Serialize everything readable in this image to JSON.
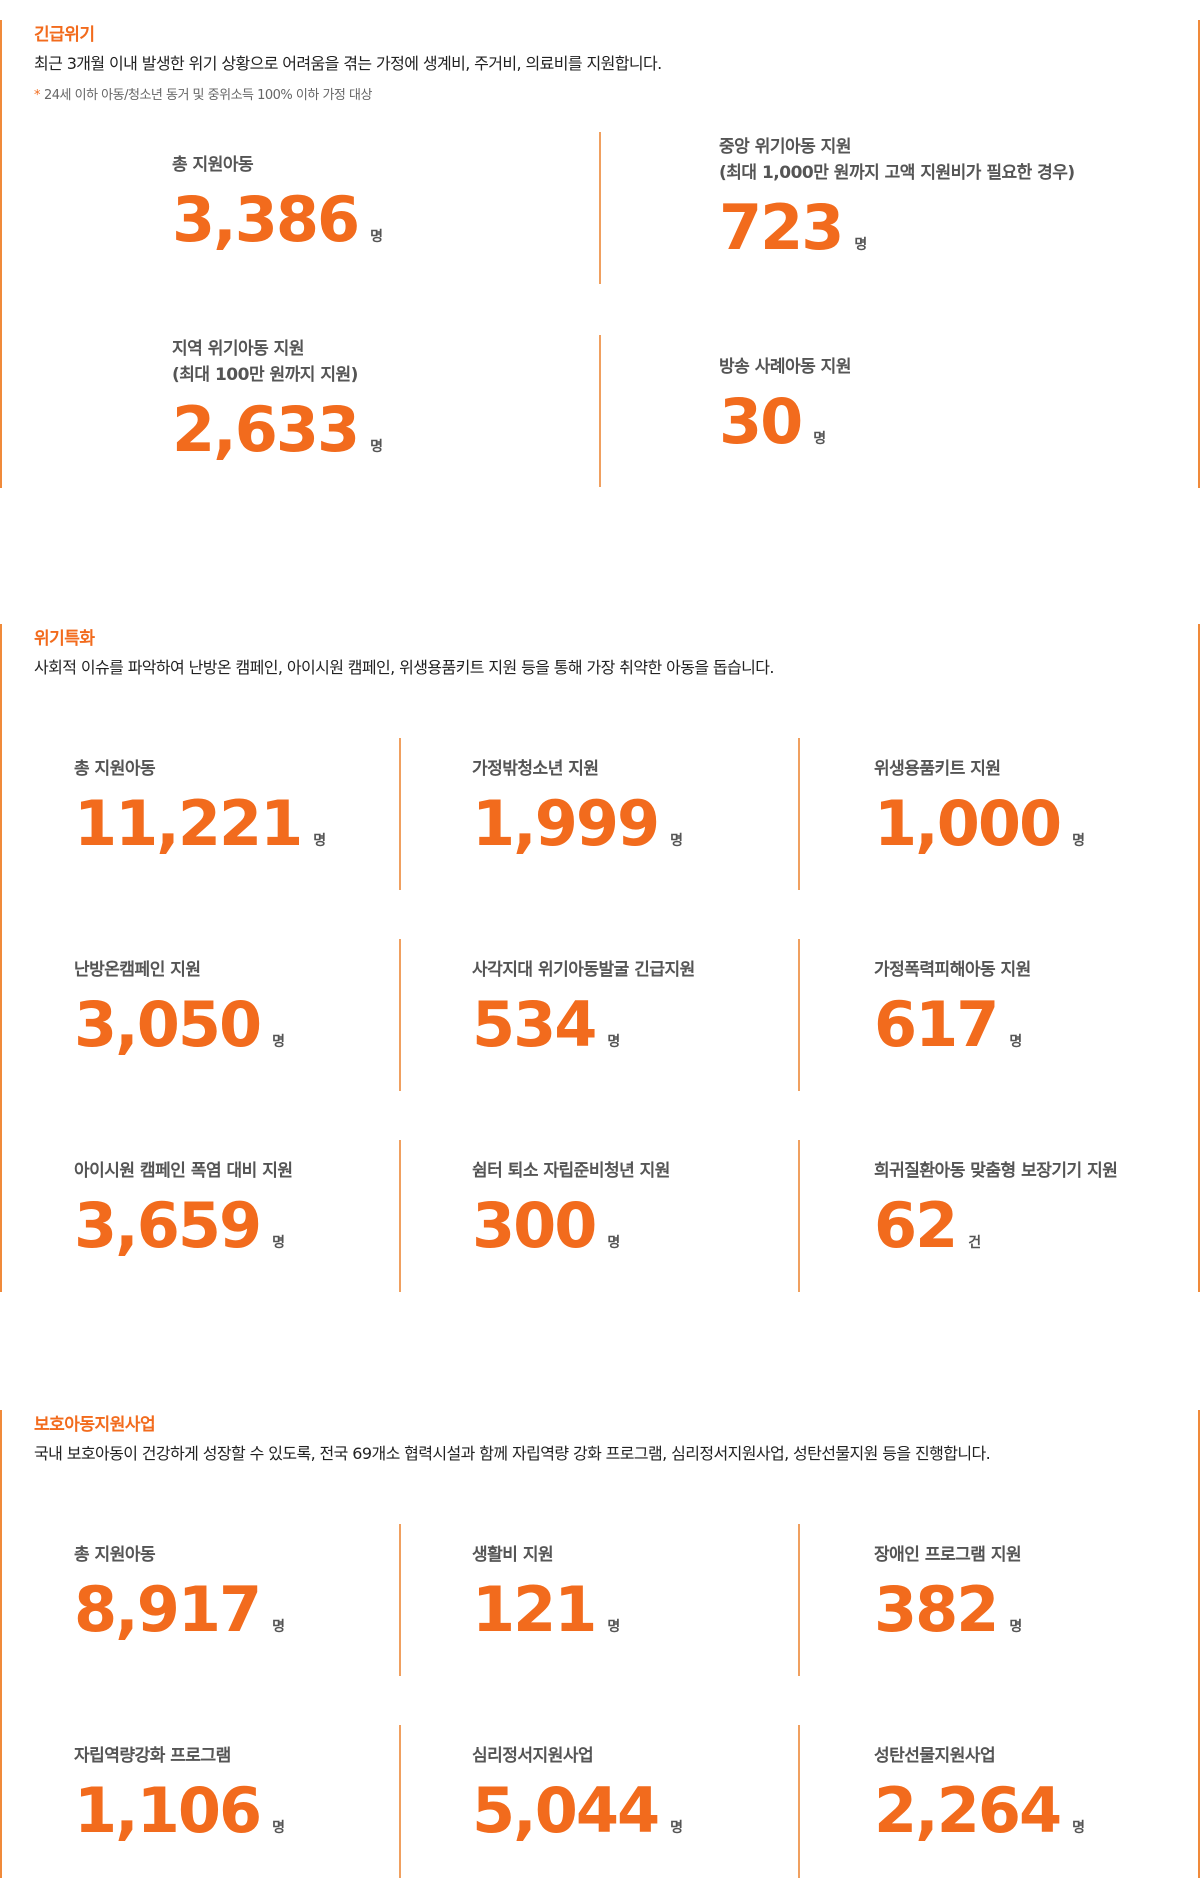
{
  "sections": [
    {
      "title": "긴급위기",
      "description": "최근 3개월 이내 발생한 위기 상황으로 어려움을 겪는 가정에 생계비, 주거비, 의료비를 지원합니다.",
      "note": "24세 이하 아동/청소년 동거 및 중위소득 100% 이하 가정 대상",
      "note_mark": "*",
      "stats": [
        {
          "label": "총 지원아동",
          "value": "3,386",
          "unit": "명"
        },
        {
          "label": "중앙 위기아동 지원\n(최대 1,000만 원까지 고액 지원비가 필요한 경우)",
          "value": "723",
          "unit": "명"
        },
        {
          "label": "지역 위기아동 지원\n(최대 100만 원까지 지원)",
          "value": "2,633",
          "unit": "명"
        },
        {
          "label": "방송 사례아동 지원",
          "value": "30",
          "unit": "명"
        }
      ]
    },
    {
      "title": "위기특화",
      "description": "사회적 이슈를 파악하여 난방온 캠페인, 아이시원 캠페인, 위생용품키트 지원 등을 통해 가장 취약한 아동을 돕습니다.",
      "stats": [
        {
          "label": "총 지원아동",
          "value": "11,221",
          "unit": "명"
        },
        {
          "label": "가정밖청소년 지원",
          "value": "1,999",
          "unit": "명"
        },
        {
          "label": "위생용품키트 지원",
          "value": "1,000",
          "unit": "명"
        },
        {
          "label": "난방온캠페인 지원",
          "value": "3,050",
          "unit": "명"
        },
        {
          "label": "사각지대 위기아동발굴 긴급지원",
          "value": "534",
          "unit": "명"
        },
        {
          "label": "가정폭력피해아동 지원",
          "value": "617",
          "unit": "명"
        },
        {
          "label": "아이시원 캠페인 폭염 대비 지원",
          "value": "3,659",
          "unit": "명"
        },
        {
          "label": "쉼터 퇴소 자립준비청년 지원",
          "value": "300",
          "unit": "명"
        },
        {
          "label": "희귀질환아동 맞춤형 보장기기 지원",
          "value": "62",
          "unit": "건"
        }
      ]
    },
    {
      "title": "보호아동지원사업",
      "description": "국내 보호아동이 건강하게 성장할 수 있도록, 전국 69개소 협력시설과 함께 자립역량 강화 프로그램, 심리정서지원사업, 성탄선물지원 등을 진행합니다.",
      "stats": [
        {
          "label": "총 지원아동",
          "value": "8,917",
          "unit": "명"
        },
        {
          "label": "생활비 지원",
          "value": "121",
          "unit": "명"
        },
        {
          "label": "장애인 프로그램 지원",
          "value": "382",
          "unit": "명"
        },
        {
          "label": "자립역량강화 프로그램",
          "value": "1,106",
          "unit": "명"
        },
        {
          "label": "심리정서지원사업",
          "value": "5,044",
          "unit": "명"
        },
        {
          "label": "성탄선물지원사업",
          "value": "2,264",
          "unit": "명"
        }
      ]
    }
  ],
  "colors": {
    "accent": "#f26b1d",
    "divider": "#f0a060"
  }
}
